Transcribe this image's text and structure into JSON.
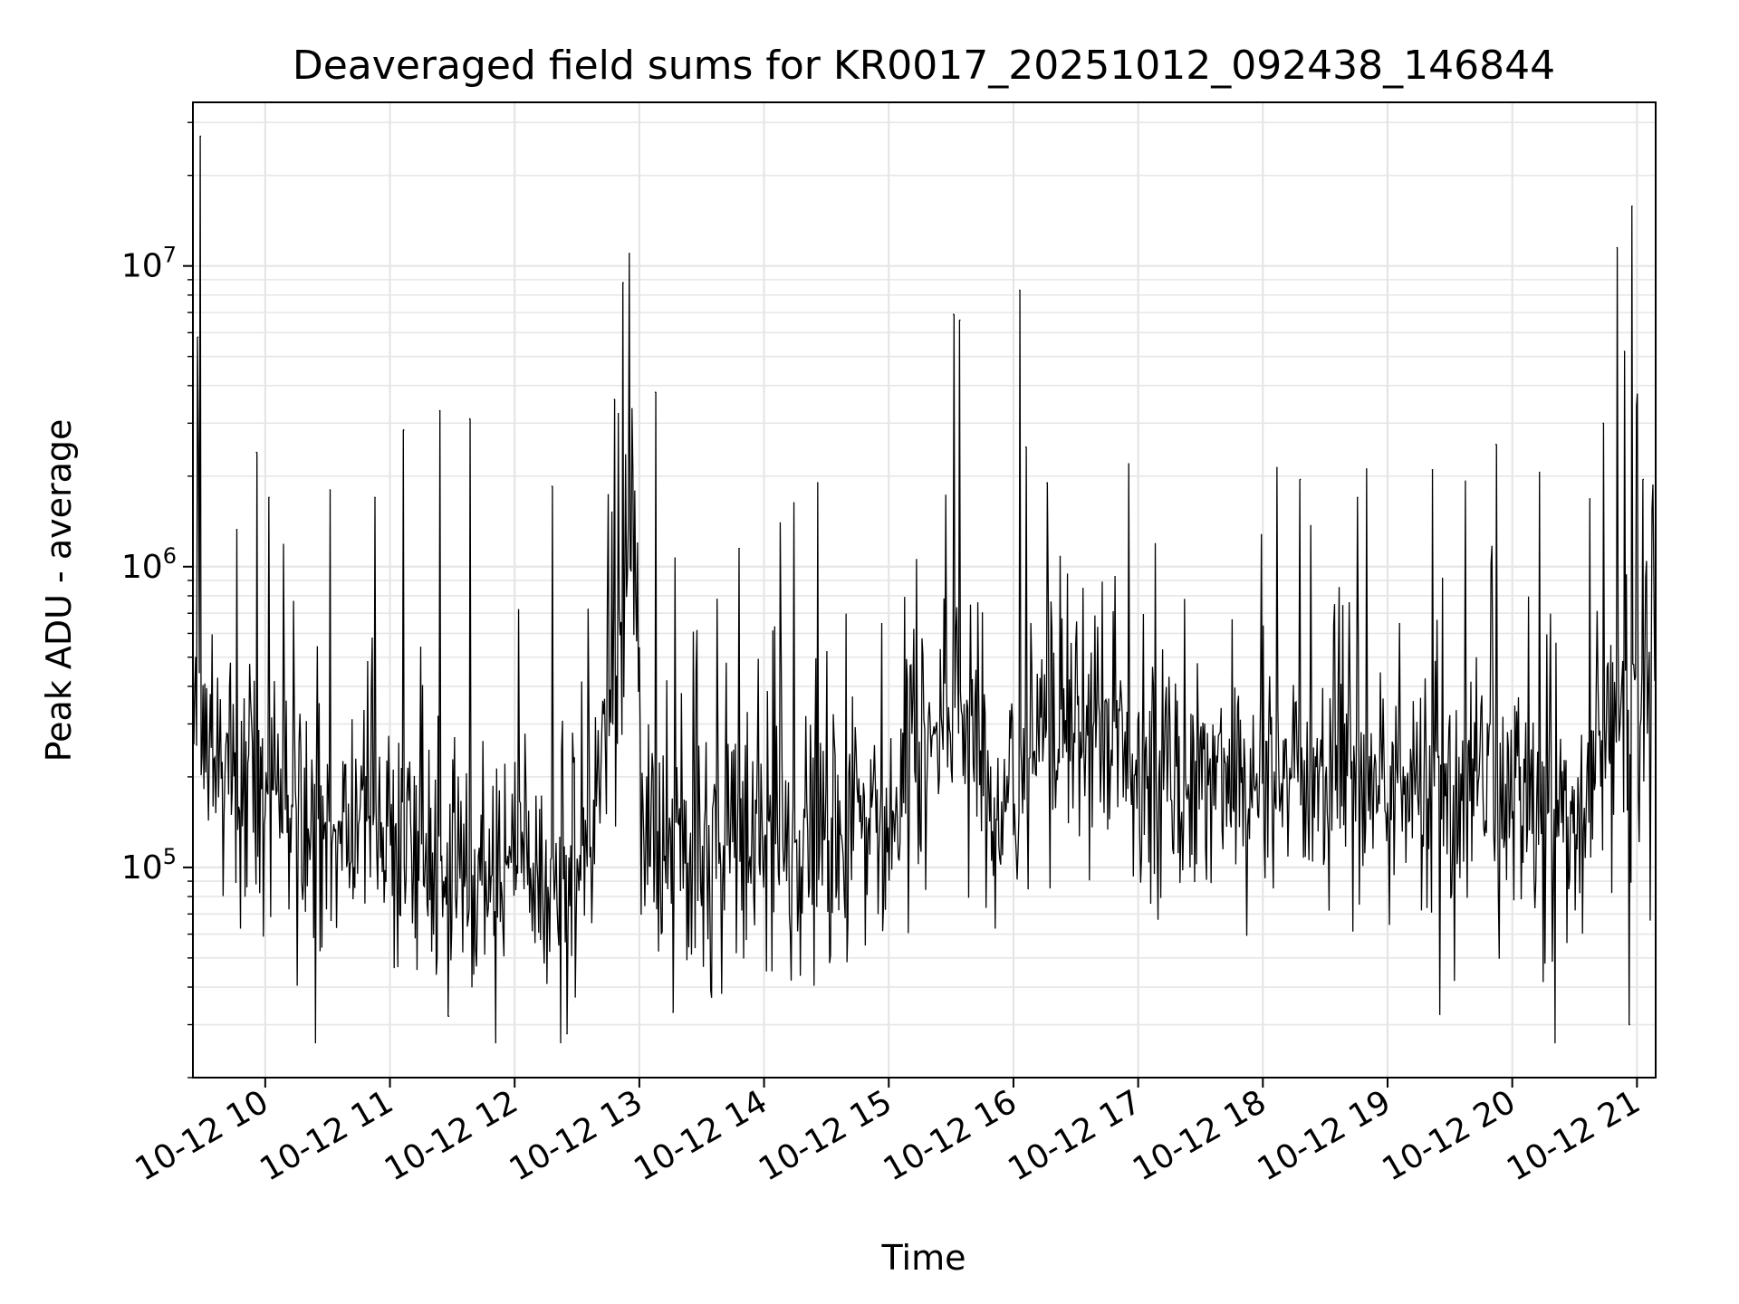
{
  "chart_data": {
    "type": "line",
    "title": "Deaveraged field sums for KR0017_20251012_092438_146844",
    "xlabel": "Time",
    "ylabel": "Peak ADU - average",
    "yscale": "log",
    "ylim": [
      20000,
      35000000
    ],
    "xlim_hours": [
      9.42,
      21.15
    ],
    "grid": true,
    "line_color": "#000000",
    "x_ticks": [
      {
        "hour": 10,
        "label": "10-12 10"
      },
      {
        "hour": 11,
        "label": "10-12 11"
      },
      {
        "hour": 12,
        "label": "10-12 12"
      },
      {
        "hour": 13,
        "label": "10-12 13"
      },
      {
        "hour": 14,
        "label": "10-12 14"
      },
      {
        "hour": 15,
        "label": "10-12 15"
      },
      {
        "hour": 16,
        "label": "10-12 16"
      },
      {
        "hour": 17,
        "label": "10-12 17"
      },
      {
        "hour": 18,
        "label": "10-12 18"
      },
      {
        "hour": 19,
        "label": "10-12 19"
      },
      {
        "hour": 20,
        "label": "10-12 20"
      },
      {
        "hour": 21,
        "label": "10-12 21"
      }
    ],
    "y_ticks": [
      {
        "value": 100000,
        "base": "10",
        "exp": "5"
      },
      {
        "value": 1000000,
        "base": "10",
        "exp": "6"
      },
      {
        "value": 10000000,
        "base": "10",
        "exp": "7"
      }
    ],
    "baseline": {
      "hours": [
        9.42,
        9.6,
        9.85,
        10.3,
        11.0,
        11.5,
        12.0,
        12.5,
        12.85,
        12.95,
        13.05,
        14.0,
        15.0,
        15.3,
        15.65,
        15.75,
        16.0,
        16.3,
        17.0,
        18.0,
        19.0,
        19.5,
        20.0,
        20.55,
        20.7,
        21.15
      ],
      "values": [
        350000,
        250000,
        180000,
        170000,
        130000,
        110000,
        115000,
        90000,
        500000,
        1500000,
        120000,
        120000,
        130000,
        250000,
        400000,
        170000,
        160000,
        400000,
        220000,
        200000,
        230000,
        150000,
        180000,
        130000,
        300000,
        400000
      ]
    },
    "spikes": [
      {
        "hour": 9.48,
        "value": 27000000
      },
      {
        "hour": 9.46,
        "value": 5800000
      },
      {
        "hour": 9.93,
        "value": 2400000
      },
      {
        "hour": 10.03,
        "value": 1700000
      },
      {
        "hour": 10.52,
        "value": 1800000
      },
      {
        "hour": 10.88,
        "value": 1700000
      },
      {
        "hour": 11.11,
        "value": 2850000
      },
      {
        "hour": 11.4,
        "value": 3300000
      },
      {
        "hour": 11.64,
        "value": 3100000
      },
      {
        "hour": 12.3,
        "value": 1850000
      },
      {
        "hour": 12.87,
        "value": 8800000
      },
      {
        "hour": 12.92,
        "value": 11000000
      },
      {
        "hour": 12.8,
        "value": 3600000
      },
      {
        "hour": 13.13,
        "value": 3800000
      },
      {
        "hour": 13.8,
        "value": 1150000
      },
      {
        "hour": 14.43,
        "value": 1900000
      },
      {
        "hour": 15.52,
        "value": 6900000
      },
      {
        "hour": 15.57,
        "value": 6600000
      },
      {
        "hour": 16.05,
        "value": 8300000
      },
      {
        "hour": 16.1,
        "value": 2500000
      },
      {
        "hour": 16.27,
        "value": 1900000
      },
      {
        "hour": 18.3,
        "value": 1950000
      },
      {
        "hour": 18.76,
        "value": 1700000
      },
      {
        "hour": 19.36,
        "value": 2100000
      },
      {
        "hour": 19.87,
        "value": 2550000
      },
      {
        "hour": 20.73,
        "value": 3000000
      },
      {
        "hour": 20.84,
        "value": 11500000
      },
      {
        "hour": 20.9,
        "value": 5200000
      },
      {
        "hour": 20.96,
        "value": 15800000
      },
      {
        "hour": 21.05,
        "value": 1950000
      }
    ],
    "dips": [
      {
        "hour": 12.42,
        "value": 28000
      },
      {
        "hour": 20.94,
        "value": 30000
      },
      {
        "hour": 11.47,
        "value": 32000
      },
      {
        "hour": 13.27,
        "value": 33000
      }
    ]
  }
}
